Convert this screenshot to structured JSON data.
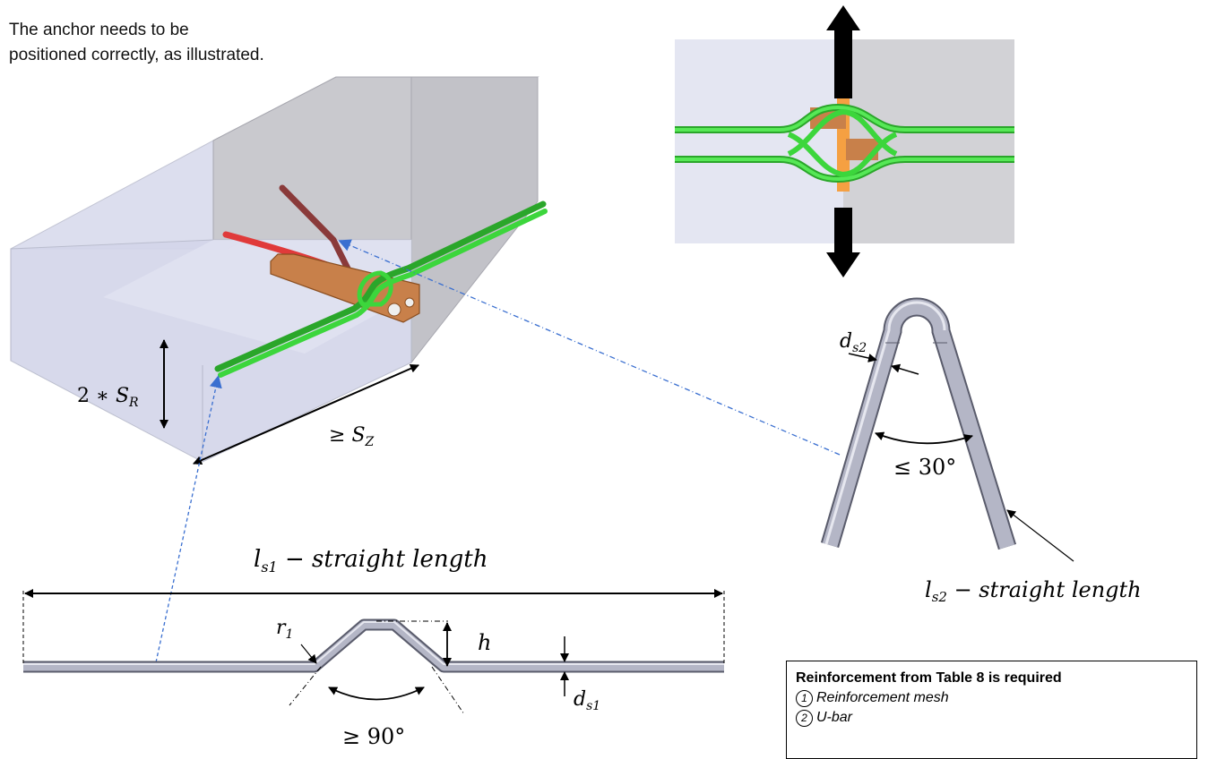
{
  "caption": {
    "line1": "The anchor needs to be",
    "line2": "positioned correctly, as illustrated."
  },
  "labels": {
    "two_sr_coef": "2 ∗ ",
    "two_sr_var": "S",
    "two_sr_sub": "R",
    "sz_sym": "≥ ",
    "sz_var": "S",
    "sz_sub": "Z",
    "ds2_var": "d",
    "ds2_sub": "s2",
    "angle_u": "≤ 30°",
    "ls2_var": "l",
    "ls2_sub": "s2",
    "ls2_text": " − straight length",
    "ls1_var": "l",
    "ls1_sub": "s1",
    "ls1_text": " − straight length",
    "r1_var": "r",
    "r1_sub": "1",
    "h_var": "h",
    "ds1_var": "d",
    "ds1_sub": "s1",
    "angle_mesh": "≥ 90°"
  },
  "note": {
    "title": "Reinforcement from Table 8 is required",
    "items": [
      {
        "num": "1",
        "label": "Reinforcement mesh"
      },
      {
        "num": "2",
        "label": "U-bar"
      }
    ]
  },
  "colors": {
    "rebar_green": "#3cd63c",
    "anchor_copper": "#c8804a",
    "bar_red": "#e03a3a",
    "steel_gray": "#b4b6c6",
    "block_front": "#d6d8ec",
    "block_side": "#c4c4cc",
    "leader_blue": "#3a6fd0"
  }
}
